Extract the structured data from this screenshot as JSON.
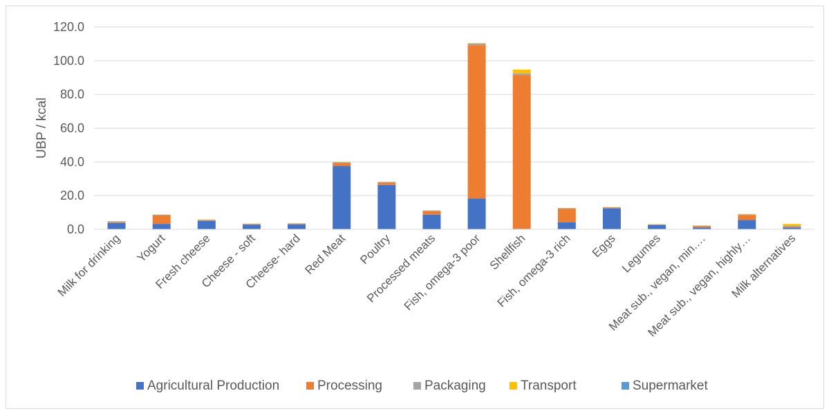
{
  "chart_data": {
    "type": "bar",
    "stacked": true,
    "title": "",
    "xlabel": "",
    "ylabel": "UBP / kcal",
    "ylim": [
      0,
      120
    ],
    "yticks": [
      0,
      20,
      40,
      60,
      80,
      100,
      120
    ],
    "ytick_labels": [
      "0.0",
      "20.0",
      "40.0",
      "60.0",
      "80.0",
      "100.0",
      "120.0"
    ],
    "grid": true,
    "legend_position": "bottom",
    "categories": [
      "Milk for drinking",
      "Yogurt",
      "Fresh cheese",
      "Cheese - soft",
      "Cheese- hard",
      "Red Meat",
      "Poultry",
      "Processed meats",
      "Fish, omega-3 poor",
      "Shellfish",
      "Fish, omega-3 rich",
      "Eggs",
      "Legumes",
      "Meat sub., vegan, min.…",
      "Meat sub., vegan, highly…",
      "Milk alternatives"
    ],
    "series": [
      {
        "name": "Agricultural Production",
        "color": "#4472C4",
        "values": [
          3.8,
          3.2,
          5.0,
          2.7,
          2.9,
          37.5,
          26.3,
          8.7,
          18.2,
          0.3,
          4.2,
          12.4,
          2.6,
          1.1,
          5.5,
          1.0
        ]
      },
      {
        "name": "Processing",
        "color": "#ED7D31",
        "values": [
          0.4,
          5.0,
          0.3,
          0.2,
          0.2,
          1.8,
          1.3,
          2.0,
          91.0,
          91.2,
          7.9,
          0.3,
          0.1,
          0.8,
          3.0,
          0.4
        ]
      },
      {
        "name": "Packaging",
        "color": "#A5A5A5",
        "values": [
          0.6,
          0.5,
          0.4,
          0.4,
          0.4,
          0.5,
          0.5,
          0.5,
          1.0,
          1.0,
          0.5,
          0.4,
          0.3,
          0.3,
          0.4,
          0.7
        ]
      },
      {
        "name": "Transport",
        "color": "#FFC000",
        "values": [
          0.1,
          0.1,
          0.1,
          0.1,
          0.1,
          0.1,
          0.1,
          0.1,
          0.2,
          2.2,
          0.1,
          0.1,
          0.1,
          0.1,
          0.2,
          1.1
        ]
      },
      {
        "name": "Supermarket",
        "color": "#5B9BD5",
        "values": [
          0.0,
          0.0,
          0.0,
          0.0,
          0.0,
          0.0,
          0.0,
          0.0,
          0.0,
          0.0,
          0.0,
          0.0,
          0.0,
          0.0,
          0.0,
          0.0
        ]
      }
    ]
  }
}
